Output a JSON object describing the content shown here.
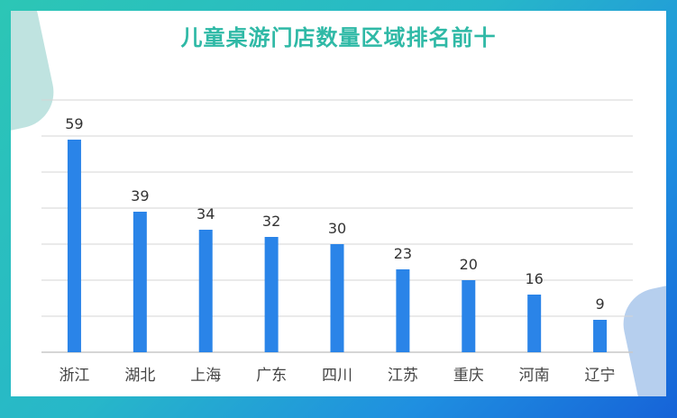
{
  "title": "儿童桌游门店数量区域排名前十",
  "colors": {
    "bar": "#2a84e8",
    "title": "#2fb9a6",
    "grid": "#d4d4d4"
  },
  "chart_data": {
    "type": "bar",
    "categories": [
      "浙江",
      "湖北",
      "上海",
      "广东",
      "四川",
      "江苏",
      "重庆",
      "河南",
      "辽宁"
    ],
    "values": [
      59,
      39,
      34,
      32,
      30,
      23,
      20,
      16,
      9
    ],
    "ylim": [
      0,
      70
    ],
    "grid": true,
    "legend": "none",
    "data_labels": true
  }
}
